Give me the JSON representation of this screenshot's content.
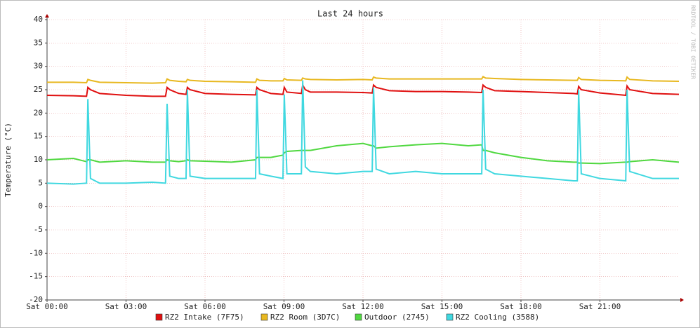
{
  "chart_data": {
    "type": "line",
    "title": "Last 24 hours",
    "y_label": "Temperature (°C)",
    "watermark": "RRDTOOL / TOBI OETIKER",
    "x": [
      0,
      1,
      1.5,
      1.55,
      1.65,
      2,
      3,
      4,
      4.5,
      4.56,
      4.66,
      5,
      5.28,
      5.33,
      5.43,
      6,
      7,
      7.92,
      7.97,
      8.07,
      8.5,
      8.96,
      9.01,
      9.11,
      9.66,
      9.71,
      9.81,
      10,
      11,
      12,
      12.35,
      12.4,
      12.5,
      13,
      14,
      15,
      16,
      16.51,
      16.56,
      16.66,
      17,
      18,
      19,
      20,
      20.14,
      20.19,
      20.29,
      21,
      21.98,
      22.03,
      22.13,
      23,
      24
    ],
    "series": [
      {
        "name": "RZ2 Intake (7F75)",
        "color": "#e01010",
        "values": [
          23.8,
          23.7,
          23.6,
          25.5,
          25,
          24.2,
          23.8,
          23.6,
          23.6,
          25.5,
          25,
          24.2,
          24,
          25.5,
          25,
          24.2,
          24,
          23.9,
          25.5,
          25,
          24.2,
          24,
          25.5,
          24.5,
          24.2,
          26,
          25,
          24.5,
          24.5,
          24.4,
          24.3,
          26,
          25.5,
          24.8,
          24.6,
          24.6,
          24.5,
          24.4,
          26,
          25.5,
          24.8,
          24.6,
          24.4,
          24.2,
          24.1,
          25.7,
          25,
          24.3,
          23.8,
          25.8,
          25,
          24.2,
          24
        ]
      },
      {
        "name": "RZ2 Room (3D7C)",
        "color": "#e8b820",
        "values": [
          26.6,
          26.6,
          26.5,
          27.2,
          27,
          26.6,
          26.5,
          26.4,
          26.5,
          27.3,
          27,
          26.8,
          26.7,
          27.2,
          27,
          26.8,
          26.7,
          26.6,
          27.3,
          27,
          26.9,
          26.9,
          27.4,
          27.1,
          27,
          27.5,
          27.3,
          27.2,
          27.1,
          27.2,
          27.1,
          27.7,
          27.5,
          27.3,
          27.3,
          27.3,
          27.3,
          27.3,
          27.8,
          27.5,
          27.4,
          27.2,
          27.1,
          27,
          27,
          27.6,
          27.2,
          27,
          26.9,
          27.7,
          27.2,
          26.9,
          26.8
        ]
      },
      {
        "name": "Outdoor (2745)",
        "color": "#50d840",
        "values": [
          10,
          10.3,
          9.6,
          10,
          10,
          9.5,
          9.8,
          9.5,
          9.5,
          10,
          9.8,
          9.6,
          9.8,
          10,
          9.8,
          9.7,
          9.5,
          10,
          10.5,
          10.5,
          10.5,
          11,
          11.5,
          11.8,
          12,
          12,
          12,
          12,
          13,
          13.5,
          13,
          13,
          12.5,
          12.8,
          13.2,
          13.5,
          13,
          13.2,
          12,
          12,
          11.5,
          10.5,
          9.8,
          9.5,
          9.5,
          9.3,
          9.3,
          9.2,
          9.5,
          9.5,
          9.6,
          10,
          9.5
        ]
      },
      {
        "name": "RZ2 Cooling (3588)",
        "color": "#40d8e0",
        "values": [
          5,
          4.8,
          5,
          23,
          6,
          5,
          5,
          5.2,
          5,
          22,
          6.5,
          6,
          6,
          25,
          6.5,
          6,
          6,
          6,
          25,
          7,
          6.5,
          6,
          24,
          7,
          7,
          27,
          8.5,
          7.5,
          7,
          7.5,
          7.5,
          25.5,
          8,
          7,
          7.5,
          7,
          7,
          7,
          25,
          8,
          7,
          6.5,
          6,
          5.5,
          5.5,
          25,
          7,
          6,
          5.5,
          25,
          7.5,
          6,
          6
        ]
      }
    ],
    "xlim": [
      0,
      24
    ],
    "xticks": [
      {
        "value": 0,
        "label": "Sat 00:00"
      },
      {
        "value": 3,
        "label": "Sat 03:00"
      },
      {
        "value": 6,
        "label": "Sat 06:00"
      },
      {
        "value": 9,
        "label": "Sat 09:00"
      },
      {
        "value": 12,
        "label": "Sat 12:00"
      },
      {
        "value": 15,
        "label": "Sat 15:00"
      },
      {
        "value": 18,
        "label": "Sat 18:00"
      },
      {
        "value": 21,
        "label": "Sat 21:00"
      }
    ],
    "ylim": [
      -20,
      40
    ],
    "yticks": [
      -20,
      -15,
      -10,
      -5,
      0,
      5,
      10,
      15,
      20,
      25,
      30,
      35,
      40
    ],
    "grid": true
  }
}
